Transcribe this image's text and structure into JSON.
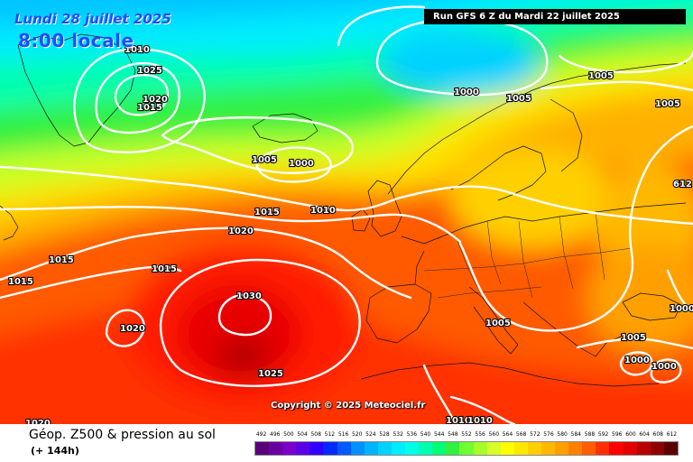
{
  "header": {
    "date": "Lundi 28 juillet 2025",
    "local_time": "8:00 locale",
    "run_info": "Run GFS 6 Z du Mardi 22 juillet 2025"
  },
  "copyright": "Copyright © 2025 Meteociel.fr",
  "footer": {
    "field_title": "Géop. Z500 & pression au sol",
    "lead_time": "(+ 144h)"
  },
  "legend": {
    "values": [
      "492",
      "496",
      "500",
      "504",
      "508",
      "512",
      "516",
      "520",
      "524",
      "528",
      "532",
      "536",
      "540",
      "544",
      "548",
      "552",
      "556",
      "560",
      "564",
      "568",
      "572",
      "576",
      "580",
      "584",
      "588",
      "592",
      "596",
      "600",
      "604",
      "608",
      "612"
    ],
    "colors": [
      "#5a007a",
      "#6a00a0",
      "#7a00c8",
      "#5a00e6",
      "#3000ff",
      "#0028ff",
      "#005aff",
      "#0090ff",
      "#00b4ff",
      "#00d2ff",
      "#00ecff",
      "#00ffe6",
      "#00ffb0",
      "#00ff78",
      "#30f040",
      "#70ff30",
      "#a8ff28",
      "#d8ff28",
      "#ffff00",
      "#ffe800",
      "#ffd000",
      "#ffb800",
      "#ffa000",
      "#ff8000",
      "#ff5c00",
      "#ff3000",
      "#ff0000",
      "#e00000",
      "#b80000",
      "#900000",
      "#5a0000"
    ]
  },
  "isobars": [
    {
      "label": "1010",
      "color": "#ffffff"
    },
    {
      "label": "1025",
      "color": "#ffffff"
    },
    {
      "label": "1020",
      "color": "#ffffff"
    },
    {
      "label": "1015",
      "color": "#ffffff"
    },
    {
      "label": "1000",
      "color": "#ffffff"
    },
    {
      "label": "1005",
      "color": "#ffffff"
    },
    {
      "label": "1005",
      "color": "#ffffff"
    },
    {
      "label": "1005",
      "color": "#ffffff"
    },
    {
      "label": "1005",
      "color": "#ffffff"
    },
    {
      "label": "1000",
      "color": "#ffffff"
    },
    {
      "label": "1015",
      "color": "#ffffff"
    },
    {
      "label": "1010",
      "color": "#ffffff"
    },
    {
      "label": "1020",
      "color": "#ffffff"
    },
    {
      "label": "1015",
      "color": "#ffffff"
    },
    {
      "label": "1015",
      "color": "#ffffff"
    },
    {
      "label": "1015",
      "color": "#ffffff"
    },
    {
      "label": "1030",
      "color": "#ffffff"
    },
    {
      "label": "1020",
      "color": "#ffffff"
    },
    {
      "label": "1025",
      "color": "#ffffff"
    },
    {
      "label": "1005",
      "color": "#ffffff"
    },
    {
      "label": "1005",
      "color": "#ffffff"
    },
    {
      "label": "1000",
      "color": "#ffffff"
    },
    {
      "label": "1000",
      "color": "#ffffff"
    },
    {
      "label": "1000",
      "color": "#ffffff"
    },
    {
      "label": "1010",
      "color": "#ffffff"
    },
    {
      "label": "1020",
      "color": "#ffffff"
    },
    {
      "label": "612",
      "color": "#ffffff"
    },
    {
      "label": "1010",
      "color": "#ffffff"
    }
  ]
}
